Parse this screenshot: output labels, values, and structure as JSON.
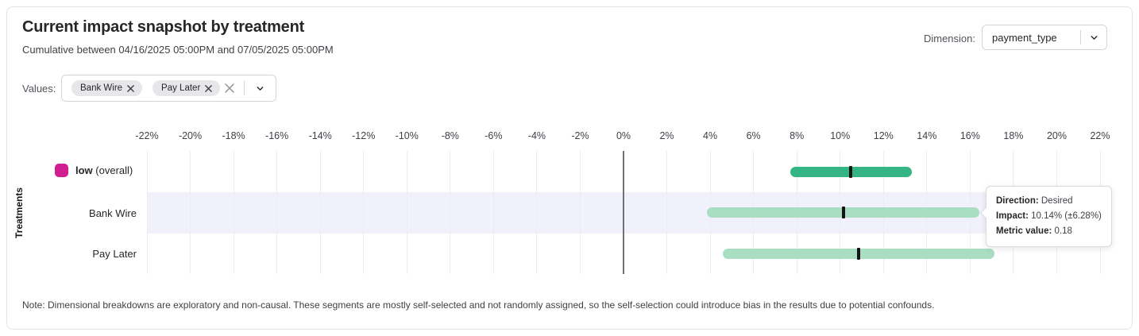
{
  "header": {
    "title": "Current impact snapshot by treatment",
    "subtitle": "Cumulative between 04/16/2025 05:00PM and 07/05/2025 05:00PM",
    "dimension_label": "Dimension:",
    "dimension_value": "payment_type"
  },
  "filters": {
    "values_label": "Values:",
    "chips": [
      {
        "label": "Bank Wire"
      },
      {
        "label": "Pay Later"
      }
    ]
  },
  "chart_data": {
    "type": "bar",
    "subtype": "horizontal-interval",
    "title": "Current impact snapshot by treatment",
    "xlabel": "",
    "ylabel": "Treatments",
    "xlim": [
      -22,
      22
    ],
    "x_tick_step": 2,
    "x_tick_suffix": "%",
    "grid": true,
    "rows": [
      {
        "label": "low",
        "label_suffix": " (overall)",
        "legend_color": "#d21f90",
        "impact": 10.5,
        "moe": 2.8,
        "bar_color": "#35b585",
        "highlighted": false
      },
      {
        "label": "Bank Wire",
        "label_suffix": "",
        "legend_color": null,
        "impact": 10.14,
        "moe": 6.28,
        "bar_color": "#a9dec2",
        "highlighted": true
      },
      {
        "label": "Pay Later",
        "label_suffix": "",
        "legend_color": null,
        "impact": 10.86,
        "moe": 6.28,
        "bar_color": "#a9dec2",
        "highlighted": false
      }
    ]
  },
  "tooltip": {
    "direction_label": "Direction:",
    "direction_value": "Desired",
    "impact_label": "Impact:",
    "impact_value": "10.14% (±6.28%)",
    "metric_label": "Metric value:",
    "metric_value": "0.18"
  },
  "note": "Note: Dimensional breakdowns are exploratory and non-causal. These segments are mostly self-selected and not randomly assigned, so the self-selection could introduce bias in the results due to potential confounds.",
  "colors": {
    "accent_green": "#35b585",
    "light_green": "#a9dec2",
    "magenta": "#d21f90",
    "highlight_band": "#f1f1fc",
    "gridline": "#ededf0",
    "zero_line": "#71717a"
  }
}
